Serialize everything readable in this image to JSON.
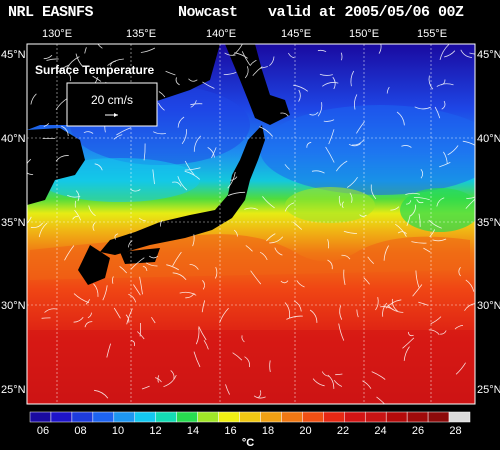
{
  "header": {
    "source": "NRL EASNFS",
    "product": "Nowcast",
    "valid": "valid at 2005/05/06 00Z"
  },
  "panel": {
    "title": "Surface Temperature",
    "scale_label": "20 cm/s"
  },
  "lon_ticks": [
    "130°E",
    "135°E",
    "140°E",
    "145°E",
    "150°E",
    "155°E"
  ],
  "lat_ticks": [
    "45°N",
    "40°N",
    "35°N",
    "30°N",
    "25°N"
  ],
  "colorbar": {
    "unit": "°C",
    "ticks": [
      "06",
      "08",
      "10",
      "12",
      "14",
      "16",
      "18",
      "20",
      "22",
      "24",
      "26",
      "28"
    ],
    "colors": [
      "#1a0aa0",
      "#1e14c8",
      "#1e3cdc",
      "#1e64f0",
      "#1e96f0",
      "#14c8f0",
      "#14dcb4",
      "#28dc50",
      "#a0e628",
      "#f0f014",
      "#f0c814",
      "#f0a014",
      "#f07814",
      "#f05014",
      "#e62814",
      "#d21414",
      "#c81414",
      "#b40a0a",
      "#a00a0a",
      "#8c0a0a",
      "#dcdcdc"
    ]
  },
  "colors": {
    "land": "#000000",
    "grid": "#ffffff",
    "text": "#ffffff"
  }
}
